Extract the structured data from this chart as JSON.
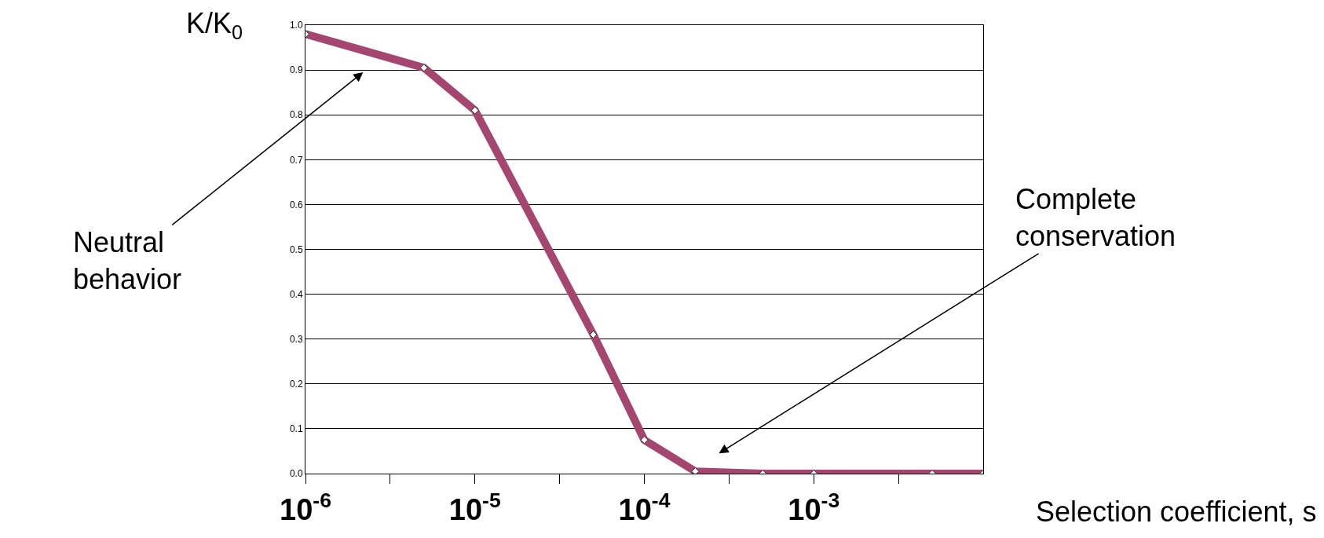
{
  "chart_data": {
    "type": "line",
    "ylabel": "K/K$_{0}$",
    "xlabel": "Selection coefficient, s",
    "x": [
      1e-06,
      5e-06,
      1e-05,
      5e-05,
      0.0001,
      0.0002,
      0.0005,
      0.001,
      0.005,
      0.01
    ],
    "series": [
      {
        "color": "#a4466f",
        "values": [
          0.98,
          0.905,
          0.81,
          0.31,
          0.075,
          0.005,
          0.0,
          0.0,
          0.0,
          0.0
        ]
      }
    ],
    "log": "x",
    "xlim": [
      1e-06,
      0.01
    ],
    "xticks": [
      {
        "value": 1e-06,
        "label": "10$^{-6}$"
      },
      {
        "value": 3.16e-06,
        "label": null
      },
      {
        "value": 1e-05,
        "label": "10$^{-5}$"
      },
      {
        "value": 3.16e-05,
        "label": null
      },
      {
        "value": 0.0001,
        "label": "10$^{-4}$"
      },
      {
        "value": 0.000316,
        "label": null
      },
      {
        "value": 0.001,
        "label": "10$^{-3}$"
      },
      {
        "value": 0.00316,
        "label": null
      }
    ],
    "ylim": [
      0,
      1
    ],
    "yticks": [
      {
        "value": 0,
        "label": "0.0"
      },
      {
        "value": 0.1,
        "label": "0.1"
      },
      {
        "value": 0.2,
        "label": "0.2"
      },
      {
        "value": 0.3,
        "label": "0.3"
      },
      {
        "value": 0.4,
        "label": "0.4"
      },
      {
        "value": 0.5,
        "label": "0.5"
      },
      {
        "value": 0.6,
        "label": "0.6"
      },
      {
        "value": 0.7,
        "label": "0.7"
      },
      {
        "value": 0.8,
        "label": "0.8"
      },
      {
        "value": 0.9,
        "label": "0.9"
      },
      {
        "value": 1,
        "label": "1.0"
      }
    ],
    "grid": "y",
    "marker": "diamond",
    "line_style": "solid",
    "annotations": [
      "Neutral behavior",
      "Complete conservation"
    ]
  }
}
